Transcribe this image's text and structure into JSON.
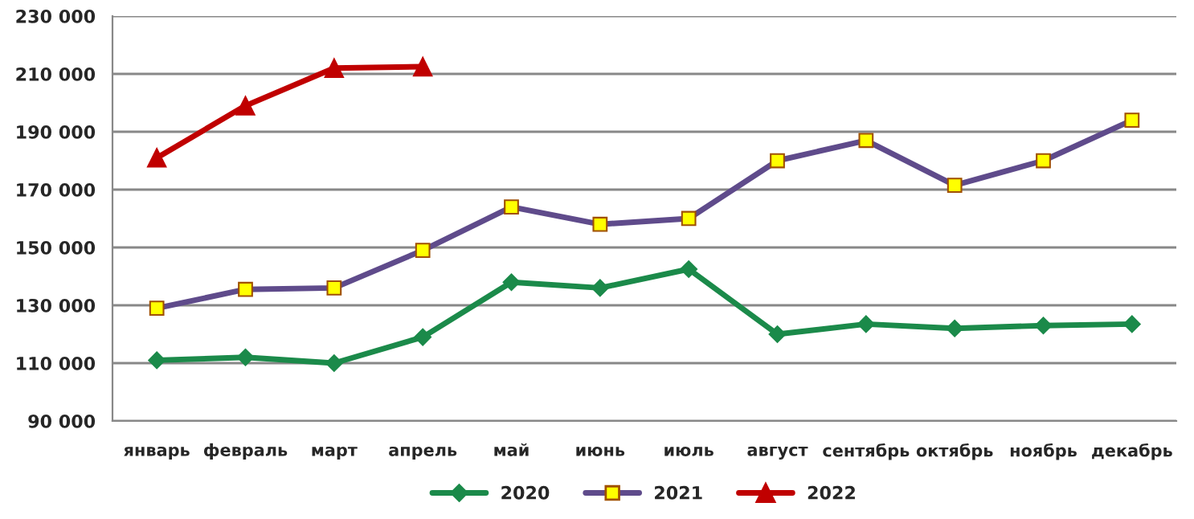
{
  "chart_data": {
    "type": "line",
    "categories": [
      "январь",
      "февраль",
      "март",
      "апрель",
      "май",
      "июнь",
      "июль",
      "август",
      "сентябрь",
      "октябрь",
      "ноябрь",
      "декабрь"
    ],
    "series": [
      {
        "name": "2020",
        "color": "#1b8a4a",
        "marker": "diamond",
        "values": [
          111000,
          112000,
          110000,
          119000,
          138000,
          136000,
          142500,
          120000,
          123500,
          122000,
          123000,
          123500
        ]
      },
      {
        "name": "2021",
        "color": "#5f4b8b",
        "marker": "square",
        "values": [
          129000,
          135500,
          136000,
          149000,
          164000,
          158000,
          160000,
          180000,
          187000,
          171500,
          180000,
          194000
        ]
      },
      {
        "name": "2022",
        "color": "#c00000",
        "marker": "triangle",
        "values": [
          181000,
          199000,
          212000,
          212500,
          null,
          null,
          null,
          null,
          null,
          null,
          null,
          null
        ]
      }
    ],
    "ylim": [
      90000,
      230000
    ],
    "yticks": [
      {
        "value": 90000,
        "label": "90 000"
      },
      {
        "value": 110000,
        "label": "110 000"
      },
      {
        "value": 130000,
        "label": "130 000"
      },
      {
        "value": 150000,
        "label": "150 000"
      },
      {
        "value": 170000,
        "label": "170 000"
      },
      {
        "value": 190000,
        "label": "190 000"
      },
      {
        "value": 210000,
        "label": "210 000"
      },
      {
        "value": 230000,
        "label": "230 000"
      }
    ],
    "grid": "y",
    "legend": "bottom",
    "line_style": "solid"
  }
}
